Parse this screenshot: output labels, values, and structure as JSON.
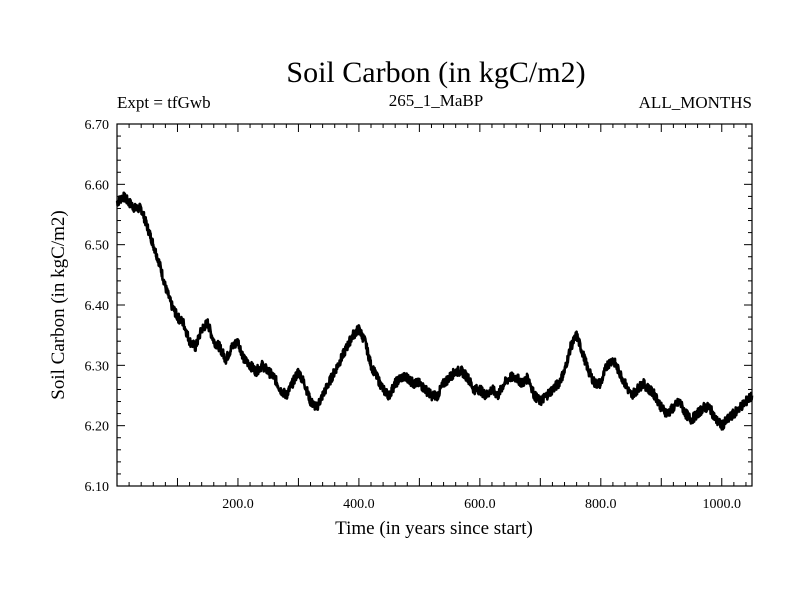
{
  "chart_data": {
    "type": "line",
    "title": "Soil Carbon (in kgC/m2)",
    "subtitle_left": "Expt = tfGwb",
    "subtitle_center": "265_1_MaBP",
    "subtitle_right": "ALL_MONTHS",
    "xlabel": "Time (in years since start)",
    "ylabel": "Soil Carbon (in kgC/m2)",
    "xlim": [
      0,
      1050
    ],
    "ylim": [
      6.1,
      6.7
    ],
    "xticks": [
      200,
      400,
      600,
      800,
      1000
    ],
    "xtick_labels": [
      "200.0",
      "400.0",
      "600.0",
      "800.0",
      "1000.0"
    ],
    "yticks": [
      6.1,
      6.2,
      6.3,
      6.4,
      6.5,
      6.6,
      6.7
    ],
    "ytick_labels": [
      "6.10",
      "6.20",
      "6.30",
      "6.40",
      "6.50",
      "6.60",
      "6.70"
    ],
    "grid": false,
    "series": [
      {
        "name": "Soil Carbon",
        "color": "#000000",
        "x": [
          0,
          10,
          20,
          30,
          40,
          50,
          60,
          70,
          80,
          90,
          100,
          110,
          120,
          130,
          140,
          150,
          160,
          170,
          180,
          190,
          200,
          210,
          220,
          230,
          240,
          250,
          260,
          270,
          280,
          290,
          300,
          310,
          320,
          330,
          340,
          350,
          360,
          370,
          380,
          390,
          400,
          410,
          420,
          430,
          440,
          450,
          460,
          470,
          480,
          490,
          500,
          510,
          520,
          530,
          540,
          550,
          560,
          570,
          580,
          590,
          600,
          610,
          620,
          630,
          640,
          650,
          660,
          670,
          680,
          690,
          700,
          710,
          720,
          730,
          740,
          750,
          760,
          770,
          780,
          790,
          800,
          810,
          820,
          830,
          840,
          850,
          860,
          870,
          880,
          890,
          900,
          910,
          920,
          930,
          940,
          950,
          960,
          970,
          980,
          990,
          1000,
          1010,
          1020,
          1030,
          1040,
          1050
        ],
        "values": [
          6.57,
          6.58,
          6.57,
          6.56,
          6.56,
          6.53,
          6.5,
          6.47,
          6.43,
          6.4,
          6.38,
          6.37,
          6.34,
          6.33,
          6.36,
          6.37,
          6.34,
          6.33,
          6.31,
          6.33,
          6.34,
          6.31,
          6.3,
          6.29,
          6.3,
          6.29,
          6.28,
          6.26,
          6.25,
          6.27,
          6.29,
          6.27,
          6.24,
          6.23,
          6.25,
          6.27,
          6.29,
          6.31,
          6.33,
          6.35,
          6.36,
          6.34,
          6.3,
          6.28,
          6.26,
          6.25,
          6.27,
          6.28,
          6.28,
          6.27,
          6.27,
          6.26,
          6.25,
          6.25,
          6.27,
          6.28,
          6.29,
          6.29,
          6.28,
          6.26,
          6.26,
          6.25,
          6.26,
          6.25,
          6.27,
          6.28,
          6.28,
          6.27,
          6.28,
          6.25,
          6.24,
          6.25,
          6.26,
          6.27,
          6.29,
          6.33,
          6.35,
          6.32,
          6.29,
          6.27,
          6.27,
          6.3,
          6.31,
          6.29,
          6.27,
          6.25,
          6.26,
          6.27,
          6.26,
          6.25,
          6.23,
          6.22,
          6.23,
          6.24,
          6.22,
          6.21,
          6.22,
          6.23,
          6.23,
          6.21,
          6.2,
          6.21,
          6.22,
          6.23,
          6.24,
          6.25
        ]
      }
    ]
  }
}
